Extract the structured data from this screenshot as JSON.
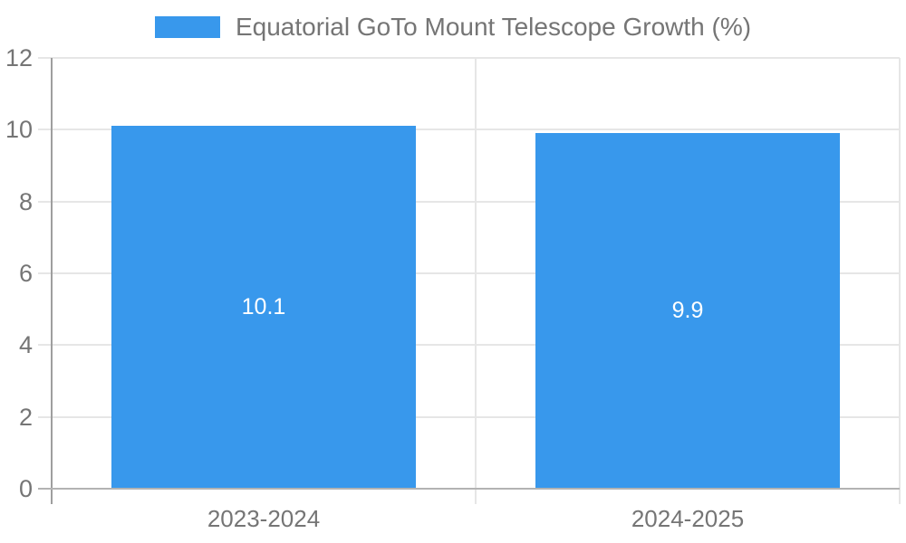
{
  "chart_data": {
    "type": "bar",
    "title": "Equatorial GoTo Mount Telescope Growth (%)",
    "categories": [
      "2023-2024",
      "2024-2025"
    ],
    "series": [
      {
        "name": "Equatorial GoTo Mount Telescope Growth (%)",
        "values": [
          10.1,
          9.9
        ]
      }
    ],
    "data_labels": [
      "10.1",
      "9.9"
    ],
    "xlabel": "",
    "ylabel": "",
    "ylim": [
      0,
      12
    ],
    "yticks": [
      0,
      2,
      4,
      6,
      8,
      10,
      12
    ],
    "grid": true,
    "legend_position": "top",
    "bar_color": "#3898EC",
    "data_label_color": "#FFFFFF"
  },
  "legend": {
    "label": "Equatorial GoTo Mount Telescope Growth (%)",
    "swatch_color": "#3898EC"
  },
  "colors": {
    "background": "#FFFFFF",
    "grid": "#E6E6E6",
    "axis": "#9E9E9E",
    "baseline": "#B3B3B3",
    "tick_text": "#757575"
  }
}
